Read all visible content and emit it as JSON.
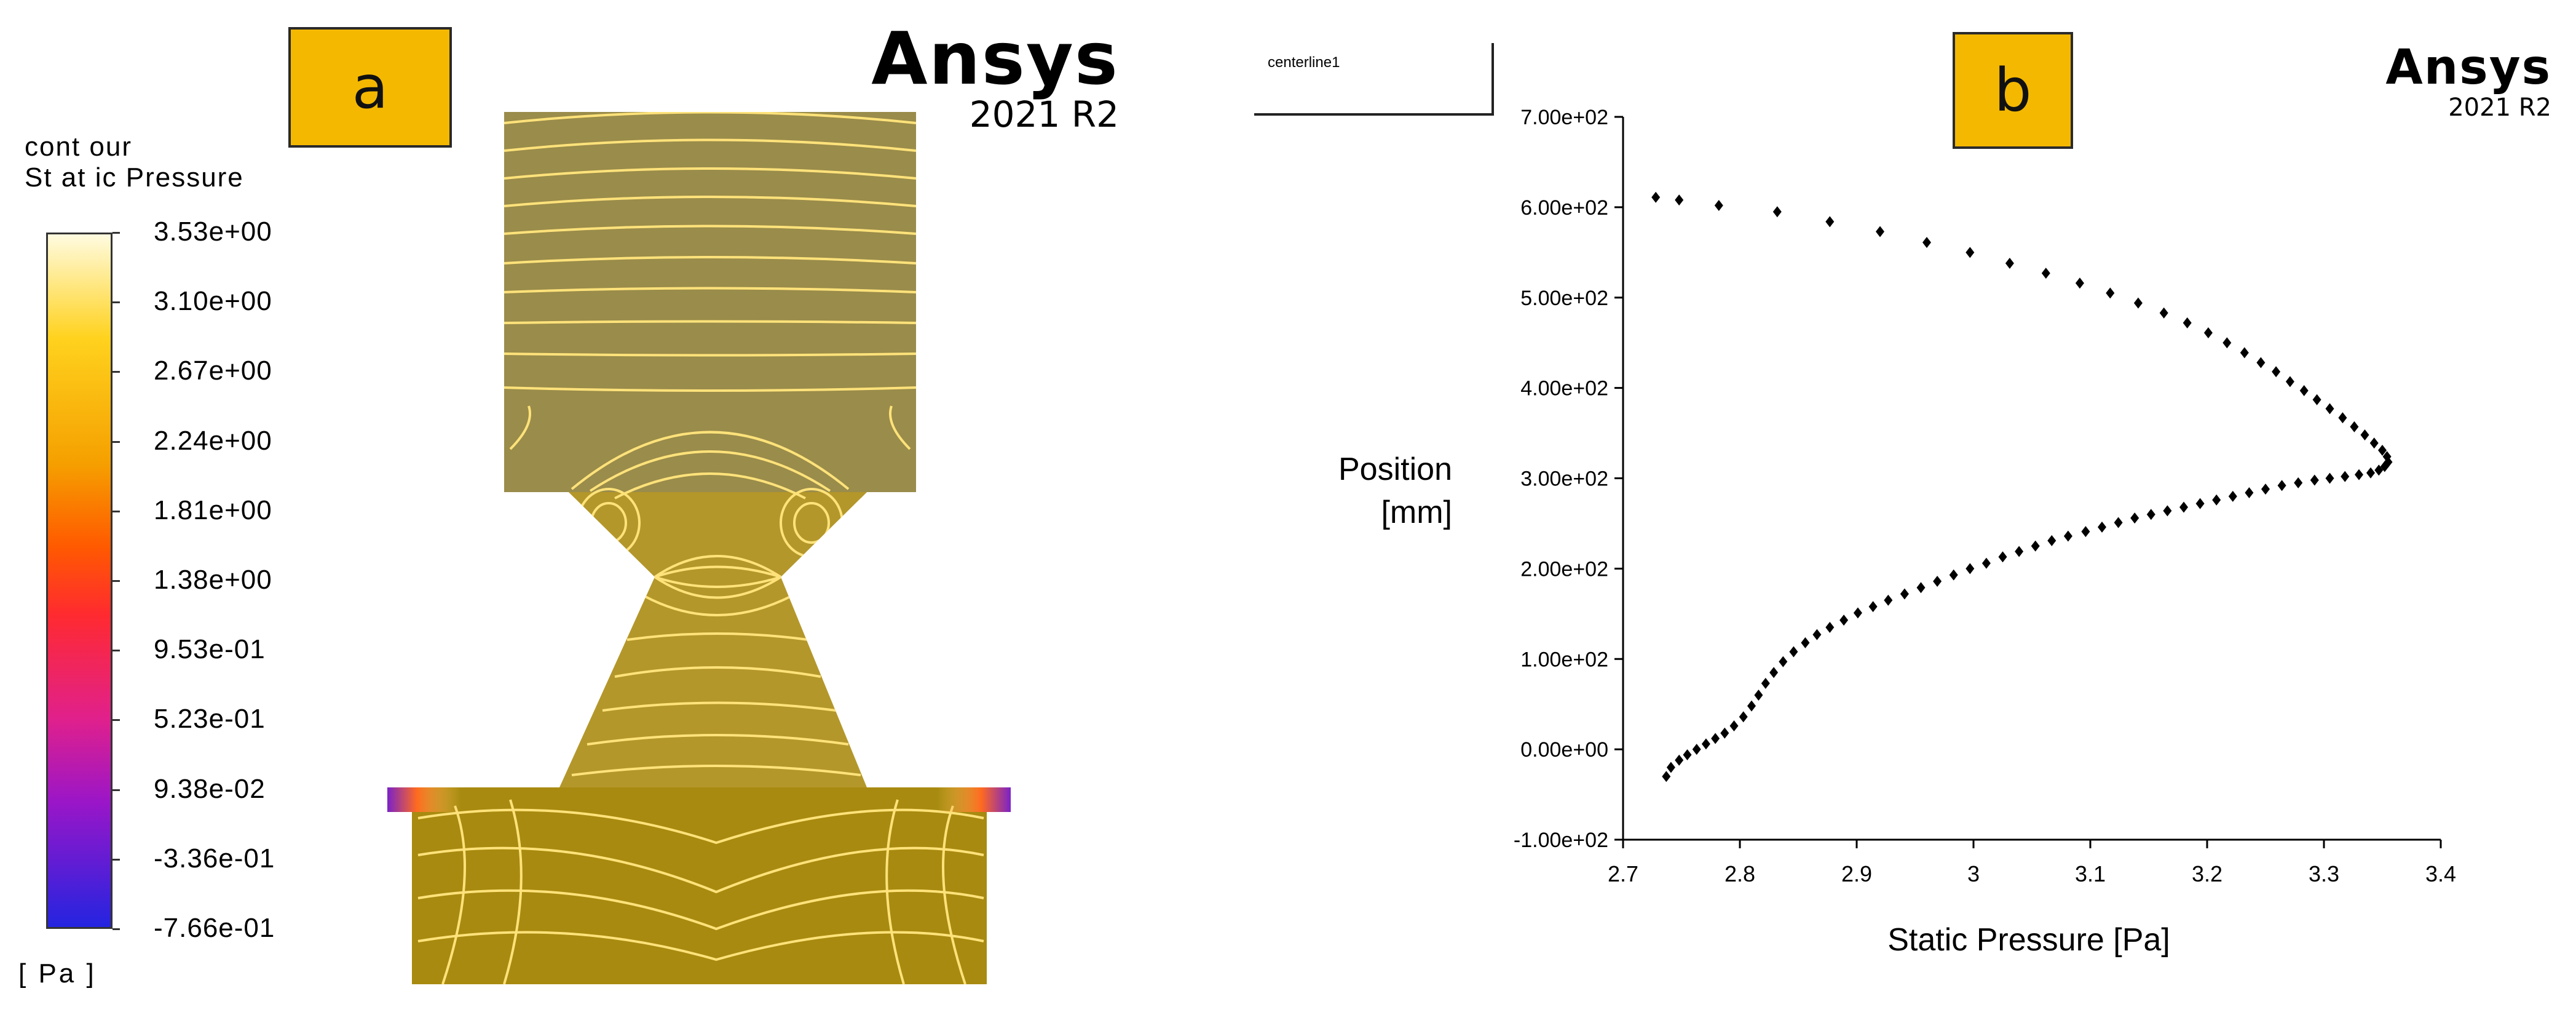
{
  "panel_a": {
    "label": "a",
    "brand": {
      "name": "Ansys",
      "version": "2021 R2"
    },
    "colorbar": {
      "title_line1": "cont our",
      "title_line2": "St at ic Pressure",
      "unit": "[ Pa ]",
      "ticks": [
        "3.53e+00",
        "3.10e+00",
        "2.67e+00",
        "2.24e+00",
        "1.81e+00",
        "1.38e+00",
        "9.53e-01",
        "5.23e-01",
        "9.38e-02",
        "-3.36e-01",
        "-7.66e-01"
      ],
      "colors": [
        "#fffbe0",
        "#ffd21e",
        "#f5a000",
        "#ff5a00",
        "#ff2a30",
        "#e0208c",
        "#9a16c8",
        "#2424e0"
      ]
    },
    "contour_fill_color": "#a8912a",
    "contour_line_color": "#ffe27a"
  },
  "panel_b": {
    "label": "b",
    "brand": {
      "name": "Ansys",
      "version": "2021 R2"
    },
    "centerline_label": "centerline1"
  },
  "chart_data": {
    "type": "scatter",
    "title": "",
    "xlabel": "Static Pressure [Pa]",
    "ylabel_line1": "Position",
    "ylabel_line2": "[mm]",
    "xlim": [
      2.7,
      3.4
    ],
    "ylim": [
      -100,
      700
    ],
    "xticks": [
      2.7,
      2.8,
      2.9,
      3.0,
      3.1,
      3.2,
      3.3,
      3.4
    ],
    "xtick_labels": [
      "2.7",
      "2.8",
      "2.9",
      "3",
      "3.1",
      "3.2",
      "3.3",
      "3.4"
    ],
    "yticks": [
      -100,
      0,
      100,
      200,
      300,
      400,
      500,
      600,
      700
    ],
    "ytick_labels": [
      "-1.00e+02",
      "0.00e+00",
      "1.00e+02",
      "2.00e+02",
      "3.00e+02",
      "4.00e+02",
      "5.00e+02",
      "6.00e+02",
      "7.00e+02"
    ],
    "grid": false,
    "marker_color": "#000000",
    "points": [
      [
        2.737,
        -30
      ],
      [
        2.741,
        -20
      ],
      [
        2.748,
        -12
      ],
      [
        2.755,
        -6
      ],
      [
        2.763,
        0
      ],
      [
        2.771,
        6
      ],
      [
        2.779,
        12
      ],
      [
        2.787,
        18
      ],
      [
        2.795,
        26
      ],
      [
        2.803,
        36
      ],
      [
        2.81,
        48
      ],
      [
        2.816,
        60
      ],
      [
        2.822,
        73
      ],
      [
        2.829,
        85
      ],
      [
        2.837,
        97
      ],
      [
        2.846,
        108
      ],
      [
        2.856,
        118
      ],
      [
        2.866,
        127
      ],
      [
        2.877,
        135
      ],
      [
        2.889,
        143
      ],
      [
        2.901,
        151
      ],
      [
        2.914,
        158
      ],
      [
        2.927,
        165
      ],
      [
        2.941,
        172
      ],
      [
        2.955,
        179
      ],
      [
        2.969,
        186
      ],
      [
        2.983,
        193
      ],
      [
        2.997,
        200
      ],
      [
        3.011,
        206
      ],
      [
        3.025,
        213
      ],
      [
        3.039,
        219
      ],
      [
        3.053,
        225
      ],
      [
        3.067,
        231
      ],
      [
        3.081,
        236
      ],
      [
        3.096,
        241
      ],
      [
        3.11,
        246
      ],
      [
        3.124,
        251
      ],
      [
        3.138,
        256
      ],
      [
        3.152,
        260
      ],
      [
        3.166,
        264
      ],
      [
        3.18,
        268
      ],
      [
        3.194,
        272
      ],
      [
        3.208,
        276
      ],
      [
        3.222,
        280
      ],
      [
        3.236,
        284
      ],
      [
        3.25,
        288
      ],
      [
        3.264,
        292
      ],
      [
        3.278,
        295
      ],
      [
        3.292,
        298
      ],
      [
        3.305,
        300
      ],
      [
        3.318,
        302
      ],
      [
        3.33,
        304
      ],
      [
        3.34,
        306
      ],
      [
        3.347,
        309
      ],
      [
        3.352,
        313
      ],
      [
        3.355,
        318
      ],
      [
        3.354,
        324
      ],
      [
        3.35,
        331
      ],
      [
        3.343,
        339
      ],
      [
        3.335,
        348
      ],
      [
        3.326,
        357
      ],
      [
        3.316,
        367
      ],
      [
        3.305,
        377
      ],
      [
        3.294,
        387
      ],
      [
        3.283,
        397
      ],
      [
        3.271,
        407
      ],
      [
        3.259,
        418
      ],
      [
        3.246,
        428
      ],
      [
        3.232,
        439
      ],
      [
        3.217,
        450
      ],
      [
        3.201,
        461
      ],
      [
        3.183,
        472
      ],
      [
        3.163,
        483
      ],
      [
        3.141,
        494
      ],
      [
        3.117,
        505
      ],
      [
        3.091,
        516
      ],
      [
        3.062,
        527
      ],
      [
        3.031,
        538
      ],
      [
        2.997,
        550
      ],
      [
        2.96,
        561
      ],
      [
        2.92,
        573
      ],
      [
        2.877,
        584
      ],
      [
        2.832,
        595
      ],
      [
        2.782,
        602
      ],
      [
        2.748,
        608
      ],
      [
        2.728,
        611
      ]
    ]
  }
}
